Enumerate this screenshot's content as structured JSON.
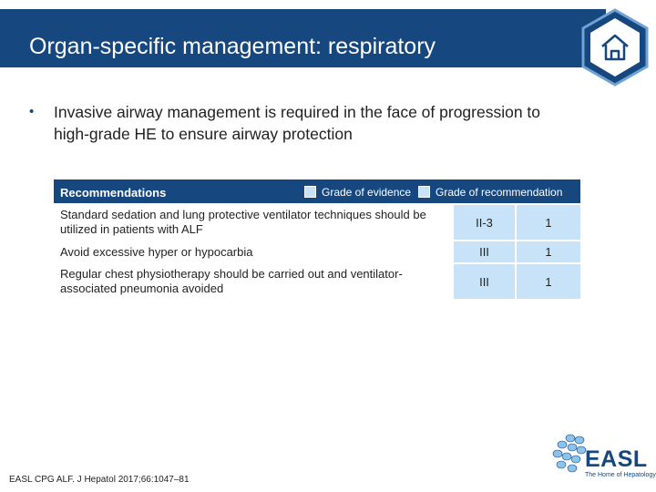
{
  "slide": {
    "title": "Organ-specific management: respiratory",
    "bullet": "Invasive airway management is required in the face of progression to high-grade HE to ensure airway protection",
    "bullet_symbol": "•"
  },
  "table": {
    "header_label": "Recommendations",
    "legend_evidence": "Grade of evidence",
    "legend_recommendation": "Grade of recommendation",
    "rows": [
      {
        "text": "Standard sedation and lung protective ventilator techniques should be utilized in patients with ALF",
        "evidence": "II-3",
        "recommendation": "1"
      },
      {
        "text": "Avoid excessive hyper or hypocarbia",
        "evidence": "III",
        "recommendation": "1"
      },
      {
        "text": "Regular chest physiotherapy should be carried out and ventilator-associated pneumonia avoided",
        "evidence": "III",
        "recommendation": "1"
      }
    ]
  },
  "footer": {
    "reference": "EASL CPG ALF. J Hepatol 2017;66:1047–81"
  },
  "logo": {
    "name": "EASL",
    "tagline": "The Home of Hepatology"
  },
  "colors": {
    "brand_blue": "#16477f",
    "grade_fill": "#c8e2f7"
  },
  "icons": {
    "home": "home-icon"
  }
}
